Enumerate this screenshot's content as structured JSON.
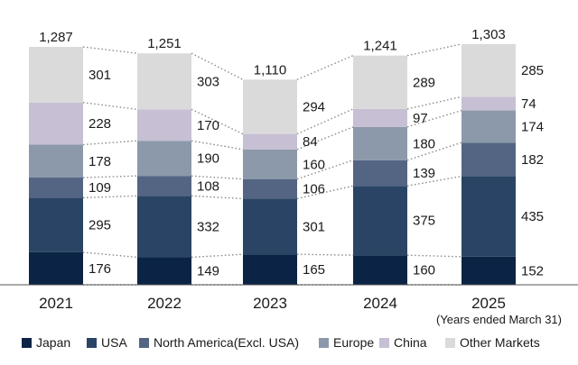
{
  "chart_data": {
    "type": "bar",
    "stacked": true,
    "categories": [
      "2021",
      "2022",
      "2023",
      "2024",
      "2025"
    ],
    "x_note": "(Years ended March 31)",
    "totals": [
      1287,
      1251,
      1110,
      1241,
      1303
    ],
    "series": [
      {
        "name": "Japan",
        "color": "#0b2445",
        "values": [
          176,
          149,
          165,
          160,
          152
        ]
      },
      {
        "name": "USA",
        "color": "#2a4465",
        "values": [
          295,
          332,
          301,
          375,
          435
        ]
      },
      {
        "name": "North America(Excl. USA)",
        "color": "#536582",
        "values": [
          109,
          108,
          106,
          139,
          182
        ]
      },
      {
        "name": "Europe",
        "color": "#8c99ab",
        "values": [
          178,
          190,
          160,
          180,
          174
        ]
      },
      {
        "name": "China",
        "color": "#c7bfd3",
        "values": [
          228,
          170,
          84,
          97,
          74
        ]
      },
      {
        "name": "Other Markets",
        "color": "#dadada",
        "values": [
          301,
          303,
          294,
          289,
          285
        ]
      }
    ],
    "value_labels": [
      [
        "176",
        "149",
        "165",
        "160",
        "152"
      ],
      [
        "295",
        "332",
        "301",
        "375",
        "435"
      ],
      [
        "109",
        "108",
        "106",
        "139",
        "182"
      ],
      [
        "178",
        "190",
        "160",
        "180",
        "174"
      ],
      [
        "228",
        "170",
        "84",
        "97",
        "74"
      ],
      [
        "301",
        "303",
        "294",
        "289",
        "285"
      ]
    ],
    "total_labels": [
      "1,287",
      "1,251",
      "1,110",
      "1,241",
      "1,303"
    ],
    "ylim": [
      0,
      1400
    ],
    "grid": false,
    "connector_lines": "dotted",
    "legend_position": "bottom"
  }
}
